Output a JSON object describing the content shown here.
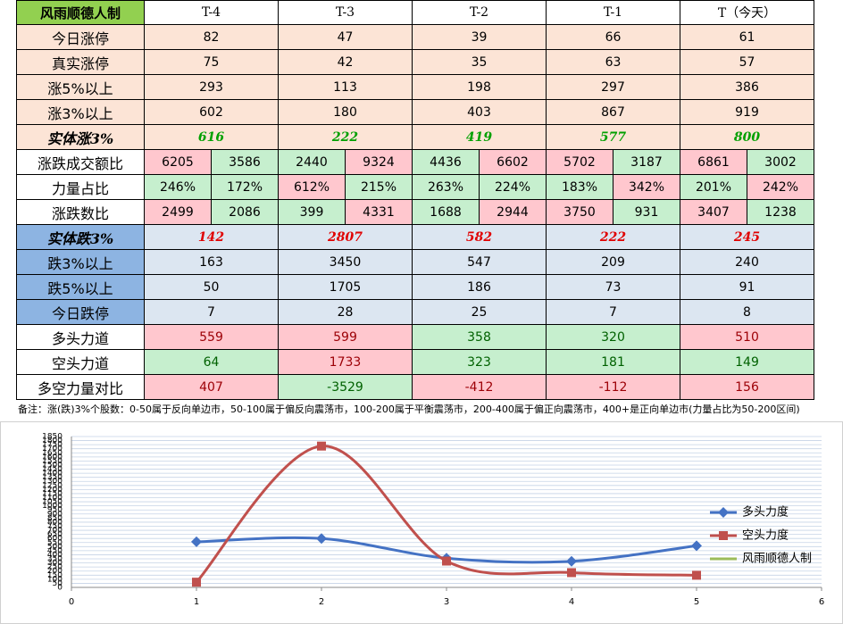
{
  "table": {
    "header": [
      "风雨顺德人制",
      "T-4",
      "T-3",
      "T-2",
      "T-1",
      "T（今天）"
    ],
    "rows": [
      {
        "label": "今日涨停",
        "cells": [
          82,
          47,
          39,
          66,
          61
        ]
      },
      {
        "label": "真实涨停",
        "cells": [
          75,
          42,
          35,
          63,
          57
        ]
      },
      {
        "label": "涨5%以上",
        "cells": [
          293,
          113,
          198,
          297,
          386
        ]
      },
      {
        "label": "涨3%以上",
        "cells": [
          602,
          180,
          403,
          867,
          919
        ]
      },
      {
        "label": "实体涨3%",
        "cells": [
          616,
          222,
          419,
          577,
          800
        ]
      },
      {
        "label": "涨跌成交额比",
        "cells": [
          6205,
          3586,
          2440,
          9324,
          4436,
          6602,
          5702,
          3187,
          6861,
          3002
        ]
      },
      {
        "label": "力量占比",
        "cells": [
          "246%",
          "172%",
          "612%",
          "215%",
          "263%",
          "224%",
          "183%",
          "342%",
          "201%",
          "242%"
        ]
      },
      {
        "label": "涨跌数比",
        "cells": [
          2499,
          2086,
          399,
          4331,
          1688,
          2944,
          3750,
          931,
          3407,
          1238
        ]
      },
      {
        "label": "实体跌3%",
        "cells": [
          142,
          2807,
          582,
          222,
          245
        ]
      },
      {
        "label": "跌3%以上",
        "cells": [
          163,
          3450,
          547,
          209,
          240
        ]
      },
      {
        "label": "跌5%以上",
        "cells": [
          50,
          1705,
          186,
          73,
          91
        ]
      },
      {
        "label": "今日跌停",
        "cells": [
          7,
          28,
          25,
          7,
          8
        ]
      },
      {
        "label": "多头力道",
        "cells": [
          559,
          599,
          358,
          320,
          510
        ]
      },
      {
        "label": "空头力道",
        "cells": [
          64,
          1733,
          323,
          181,
          149
        ]
      },
      {
        "label": "多空力量对比",
        "cells": [
          407,
          -3529,
          -412,
          -112,
          156
        ]
      }
    ]
  },
  "note": "备注：涨(跌)3%个股数：0-50属于反向单边市，50-100属于偏反向震荡市，100-200属于平衡震荡市，200-400属于偏正向震荡市，400+是正向单边市(力量占比为50-200区间)",
  "chart_data": {
    "type": "line",
    "x": [
      1,
      2,
      3,
      4,
      5
    ],
    "series": [
      {
        "name": "多头力度",
        "color": "#4472c4",
        "marker": "diamond",
        "values": [
          559,
          599,
          358,
          320,
          510
        ]
      },
      {
        "name": "空头力度",
        "color": "#c0504d",
        "marker": "square",
        "values": [
          64,
          1733,
          323,
          181,
          149
        ]
      },
      {
        "name": "风雨顺德人制",
        "color": "#9bbb59",
        "values": [
          null,
          null,
          null,
          null,
          null
        ]
      }
    ],
    "xlim": [
      0,
      6
    ],
    "xticks": [
      0,
      1,
      2,
      3,
      4,
      5,
      6
    ],
    "ylim": [
      0,
      1850
    ],
    "yticks": [
      0,
      50,
      100,
      150,
      200,
      250,
      300,
      350,
      400,
      450,
      500,
      550,
      600,
      650,
      700,
      750,
      800,
      850,
      900,
      950,
      1000,
      1050,
      1100,
      1150,
      1200,
      1250,
      1300,
      1350,
      1400,
      1450,
      1500,
      1550,
      1600,
      1650,
      1700,
      1750,
      1800,
      1850
    ],
    "grid": true,
    "smooth": true,
    "legend": "right"
  }
}
